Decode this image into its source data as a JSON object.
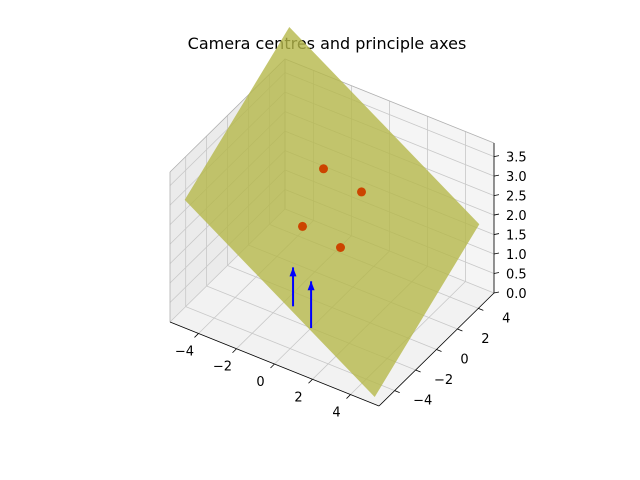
{
  "chart_data": {
    "type": "scatter",
    "projection": "3d",
    "title": "Camera centres and principle axes",
    "xlabel": "",
    "ylabel": "",
    "zlabel": "",
    "xlim": [
      -5.5,
      5.5
    ],
    "ylim": [
      -5.5,
      5.5
    ],
    "zlim": [
      0.0,
      3.85
    ],
    "x_ticks": [
      -4,
      -2,
      0,
      2,
      4
    ],
    "x_tick_labels": [
      "−4",
      "−2",
      "0",
      "2",
      "4"
    ],
    "y_ticks": [
      -4,
      -2,
      0,
      2,
      4
    ],
    "y_tick_labels": [
      "−4",
      "−2",
      "0",
      "2",
      "4"
    ],
    "z_ticks": [
      0.0,
      0.5,
      1.0,
      1.5,
      2.0,
      2.5,
      3.0,
      3.5
    ],
    "z_tick_labels": [
      "0.0",
      "0.5",
      "1.0",
      "1.5",
      "2.0",
      "2.5",
      "3.0",
      "3.5"
    ],
    "grid": true,
    "plane": {
      "name": "",
      "color": "#b5b84a",
      "opacity": 0.8,
      "corners": [
        {
          "x": -5.0,
          "y": -5.0,
          "z": 3.1
        },
        {
          "x": 5.0,
          "y": -5.0,
          "z": 0.0
        },
        {
          "x": 5.0,
          "y": 5.0,
          "z": 1.8
        },
        {
          "x": -5.0,
          "y": 5.0,
          "z": 4.9
        }
      ]
    },
    "points": {
      "name": "",
      "color": "#cc4400",
      "x": [
        -1.0,
        1.0,
        -1.0,
        1.0
      ],
      "y": [
        -1.0,
        -1.0,
        1.0,
        1.0
      ],
      "z": [
        2.15,
        2.0,
        3.1,
        2.9
      ]
    },
    "axes_arrows": {
      "name": "",
      "color": "#0000ff",
      "segments": [
        {
          "from": {
            "x": 0.0,
            "y": -2.0,
            "z": 0.0
          },
          "to": {
            "x": 0.0,
            "y": -2.0,
            "z": 1.2
          }
        },
        {
          "from": {
            "x": -1.5,
            "y": -1.0,
            "z": 0.0
          },
          "to": {
            "x": -1.5,
            "y": -1.0,
            "z": 1.0
          }
        }
      ]
    }
  }
}
